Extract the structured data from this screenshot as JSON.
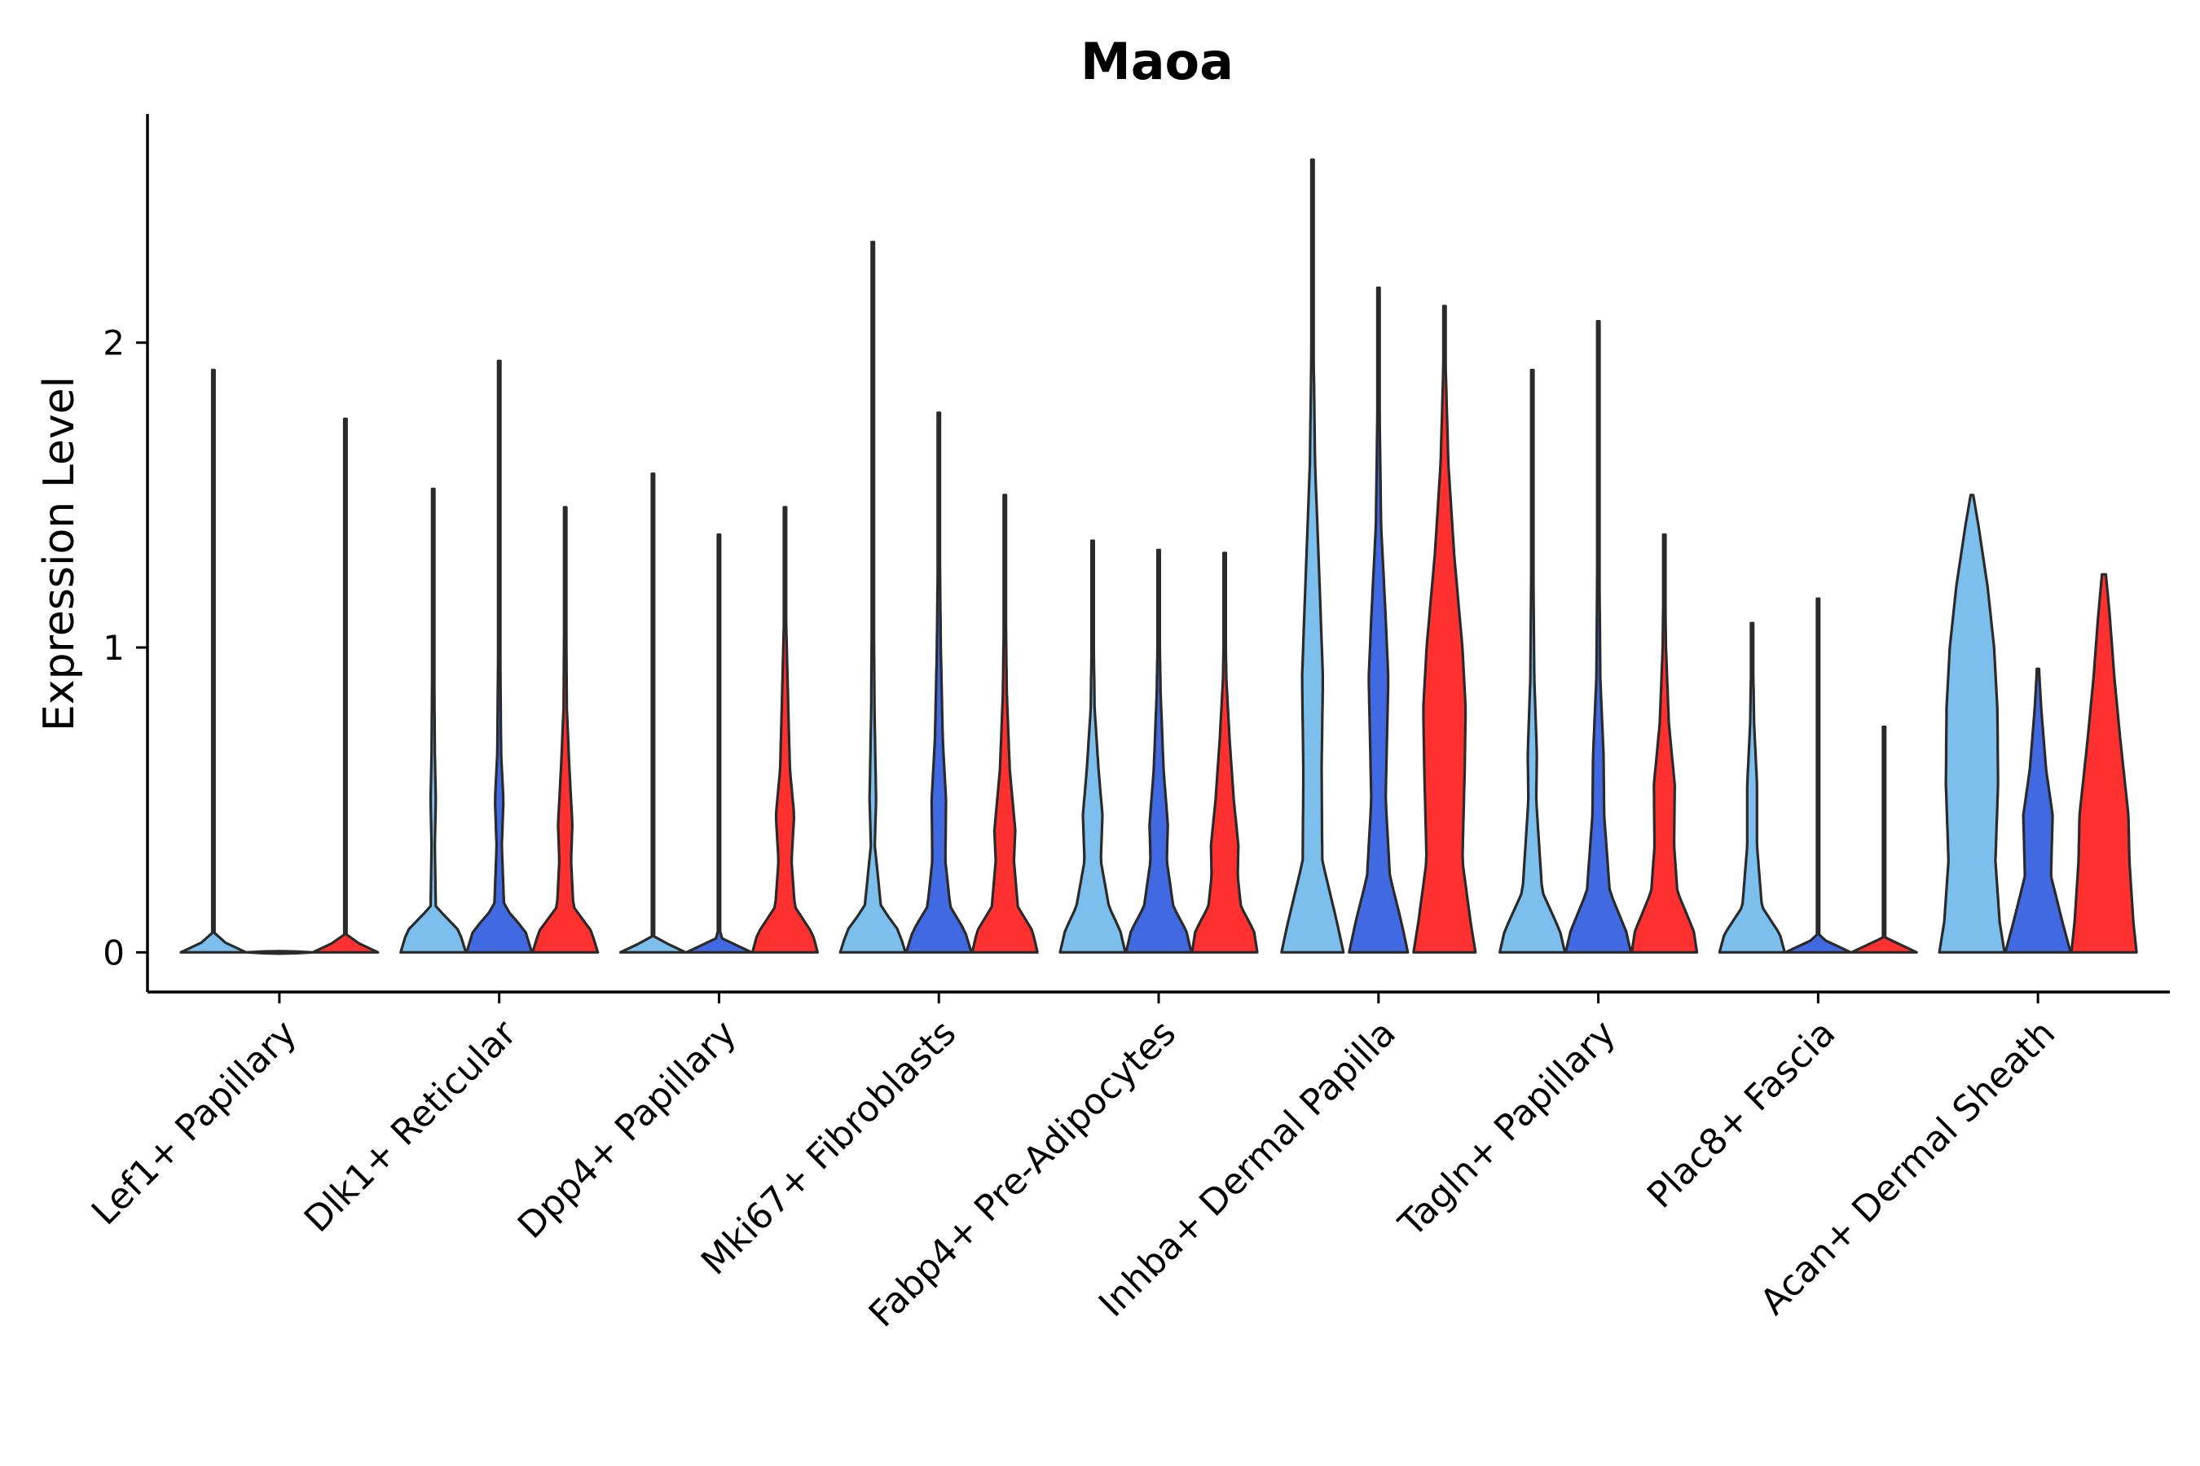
{
  "chart_data": {
    "type": "violin",
    "title": "Maoa",
    "xlabel": "",
    "ylabel": "Expression Level",
    "ylim": [
      -0.13,
      2.75
    ],
    "yticks": [
      0,
      1,
      2
    ],
    "categories": [
      "Lef1+ Papillary",
      "Dlk1+ Reticular",
      "Dpp4+ Papillary",
      "Mki67+ Fibroblasts",
      "Fabp4+ Pre-Adipocytes",
      "Inhba+ Dermal Papilla",
      "Tagln+ Papillary",
      "Plac8+ Fascia",
      "Acan+ Dermal Sheath"
    ],
    "groups": [
      {
        "name": "group-1",
        "color": "#7cbfec"
      },
      {
        "name": "group-2",
        "color": "#4169e1"
      },
      {
        "name": "group-3",
        "color": "#ff3030"
      }
    ],
    "violins": [
      [
        {
          "max": 1.91,
          "shape": [
            [
              0,
              1.0
            ],
            [
              0.05,
              0.01
            ],
            [
              1.91,
              0.004
            ]
          ]
        },
        {
          "max": 0.0,
          "shape": [
            [
              0,
              1.0
            ]
          ]
        },
        {
          "max": 1.75,
          "shape": [
            [
              0,
              1.0
            ],
            [
              0.05,
              0.01
            ],
            [
              1.75,
              0.004
            ]
          ]
        }
      ],
      [
        {
          "max": 1.52,
          "shape": [
            [
              0,
              1.0
            ],
            [
              0.07,
              0.8
            ],
            [
              0.15,
              0.08
            ],
            [
              0.35,
              0.05
            ],
            [
              0.5,
              0.08
            ],
            [
              0.65,
              0.05
            ],
            [
              0.95,
              0.03
            ],
            [
              1.52,
              0.01
            ]
          ]
        },
        {
          "max": 1.94,
          "shape": [
            [
              0,
              1.0
            ],
            [
              0.07,
              0.8
            ],
            [
              0.15,
              0.15
            ],
            [
              0.35,
              0.08
            ],
            [
              0.5,
              0.13
            ],
            [
              0.65,
              0.06
            ],
            [
              1.0,
              0.03
            ],
            [
              1.94,
              0.008
            ]
          ]
        },
        {
          "max": 1.46,
          "shape": [
            [
              0,
              1.0
            ],
            [
              0.07,
              0.8
            ],
            [
              0.15,
              0.25
            ],
            [
              0.3,
              0.18
            ],
            [
              0.42,
              0.22
            ],
            [
              0.6,
              0.13
            ],
            [
              0.8,
              0.05
            ],
            [
              1.1,
              0.03
            ],
            [
              1.46,
              0.01
            ]
          ]
        }
      ],
      [
        {
          "max": 1.57,
          "shape": [
            [
              0,
              1.0
            ],
            [
              0.05,
              0.01
            ],
            [
              1.57,
              0.004
            ]
          ]
        },
        {
          "max": 1.37,
          "shape": [
            [
              0,
              1.0
            ],
            [
              0.05,
              0.01
            ],
            [
              1.37,
              0.004
            ]
          ]
        },
        {
          "max": 1.46,
          "shape": [
            [
              0,
              1.0
            ],
            [
              0.06,
              0.85
            ],
            [
              0.15,
              0.3
            ],
            [
              0.3,
              0.2
            ],
            [
              0.45,
              0.28
            ],
            [
              0.6,
              0.15
            ],
            [
              0.8,
              0.1
            ],
            [
              1.1,
              0.03
            ],
            [
              1.46,
              0.01
            ]
          ]
        }
      ],
      [
        {
          "max": 2.33,
          "shape": [
            [
              0,
              1.0
            ],
            [
              0.07,
              0.8
            ],
            [
              0.15,
              0.25
            ],
            [
              0.35,
              0.06
            ],
            [
              0.5,
              0.1
            ],
            [
              0.8,
              0.05
            ],
            [
              1.3,
              0.02
            ],
            [
              2.33,
              0.006
            ]
          ]
        },
        {
          "max": 1.77,
          "shape": [
            [
              0,
              1.0
            ],
            [
              0.07,
              0.8
            ],
            [
              0.15,
              0.35
            ],
            [
              0.3,
              0.2
            ],
            [
              0.5,
              0.22
            ],
            [
              0.7,
              0.12
            ],
            [
              1.0,
              0.06
            ],
            [
              1.4,
              0.02
            ],
            [
              1.77,
              0.008
            ]
          ]
        },
        {
          "max": 1.5,
          "shape": [
            [
              0,
              1.0
            ],
            [
              0.07,
              0.85
            ],
            [
              0.15,
              0.4
            ],
            [
              0.3,
              0.28
            ],
            [
              0.4,
              0.32
            ],
            [
              0.6,
              0.15
            ],
            [
              0.85,
              0.06
            ],
            [
              1.1,
              0.03
            ],
            [
              1.5,
              0.01
            ]
          ]
        }
      ],
      [
        {
          "max": 1.35,
          "shape": [
            [
              0,
              1.0
            ],
            [
              0.07,
              0.85
            ],
            [
              0.15,
              0.5
            ],
            [
              0.3,
              0.25
            ],
            [
              0.45,
              0.3
            ],
            [
              0.6,
              0.18
            ],
            [
              0.8,
              0.06
            ],
            [
              1.1,
              0.02
            ],
            [
              1.35,
              0.008
            ]
          ]
        },
        {
          "max": 1.32,
          "shape": [
            [
              0,
              1.0
            ],
            [
              0.07,
              0.85
            ],
            [
              0.15,
              0.45
            ],
            [
              0.3,
              0.25
            ],
            [
              0.42,
              0.28
            ],
            [
              0.6,
              0.15
            ],
            [
              0.85,
              0.06
            ],
            [
              1.1,
              0.02
            ],
            [
              1.32,
              0.008
            ]
          ]
        },
        {
          "max": 1.31,
          "shape": [
            [
              0,
              1.0
            ],
            [
              0.07,
              0.9
            ],
            [
              0.15,
              0.5
            ],
            [
              0.25,
              0.4
            ],
            [
              0.35,
              0.42
            ],
            [
              0.5,
              0.28
            ],
            [
              0.7,
              0.15
            ],
            [
              0.9,
              0.05
            ],
            [
              1.1,
              0.02
            ],
            [
              1.31,
              0.008
            ]
          ]
        }
      ],
      [
        {
          "max": 2.6,
          "shape": [
            [
              0,
              0.95
            ],
            [
              0.1,
              0.75
            ],
            [
              0.3,
              0.3
            ],
            [
              0.6,
              0.28
            ],
            [
              0.9,
              0.32
            ],
            [
              1.2,
              0.22
            ],
            [
              1.6,
              0.08
            ],
            [
              2.0,
              0.03
            ],
            [
              2.6,
              0.005
            ]
          ]
        },
        {
          "max": 2.18,
          "shape": [
            [
              0,
              0.9
            ],
            [
              0.1,
              0.7
            ],
            [
              0.25,
              0.35
            ],
            [
              0.5,
              0.22
            ],
            [
              0.9,
              0.3
            ],
            [
              1.1,
              0.22
            ],
            [
              1.4,
              0.08
            ],
            [
              1.8,
              0.03
            ],
            [
              2.18,
              0.006
            ]
          ]
        },
        {
          "max": 2.12,
          "shape": [
            [
              0,
              0.95
            ],
            [
              0.1,
              0.8
            ],
            [
              0.3,
              0.55
            ],
            [
              0.6,
              0.62
            ],
            [
              0.8,
              0.65
            ],
            [
              1.0,
              0.55
            ],
            [
              1.3,
              0.3
            ],
            [
              1.6,
              0.12
            ],
            [
              1.9,
              0.04
            ],
            [
              2.12,
              0.006
            ]
          ]
        }
      ],
      [
        {
          "max": 1.91,
          "shape": [
            [
              0,
              1.0
            ],
            [
              0.07,
              0.85
            ],
            [
              0.2,
              0.3
            ],
            [
              0.5,
              0.12
            ],
            [
              0.65,
              0.14
            ],
            [
              0.9,
              0.06
            ],
            [
              1.3,
              0.03
            ],
            [
              1.91,
              0.006
            ]
          ]
        },
        {
          "max": 2.07,
          "shape": [
            [
              0,
              1.0
            ],
            [
              0.07,
              0.85
            ],
            [
              0.2,
              0.35
            ],
            [
              0.45,
              0.18
            ],
            [
              0.65,
              0.16
            ],
            [
              0.9,
              0.06
            ],
            [
              1.3,
              0.03
            ],
            [
              2.07,
              0.006
            ]
          ]
        },
        {
          "max": 1.37,
          "shape": [
            [
              0,
              1.0
            ],
            [
              0.07,
              0.9
            ],
            [
              0.2,
              0.4
            ],
            [
              0.35,
              0.3
            ],
            [
              0.55,
              0.32
            ],
            [
              0.75,
              0.14
            ],
            [
              1.0,
              0.05
            ],
            [
              1.37,
              0.008
            ]
          ]
        }
      ],
      [
        {
          "max": 1.08,
          "shape": [
            [
              0,
              1.0
            ],
            [
              0.06,
              0.85
            ],
            [
              0.15,
              0.3
            ],
            [
              0.35,
              0.15
            ],
            [
              0.55,
              0.15
            ],
            [
              0.75,
              0.06
            ],
            [
              1.08,
              0.01
            ]
          ]
        },
        {
          "max": 1.16,
          "shape": [
            [
              0,
              1.0
            ],
            [
              0.05,
              0.01
            ],
            [
              1.16,
              0.004
            ]
          ]
        },
        {
          "max": 0.74,
          "shape": [
            [
              0,
              1.0
            ],
            [
              0.05,
              0.01
            ],
            [
              0.74,
              0.004
            ]
          ]
        }
      ],
      [
        {
          "max": 1.5,
          "shape": [
            [
              0,
              1.0
            ],
            [
              0.1,
              0.85
            ],
            [
              0.3,
              0.72
            ],
            [
              0.55,
              0.8
            ],
            [
              0.8,
              0.78
            ],
            [
              1.0,
              0.68
            ],
            [
              1.2,
              0.48
            ],
            [
              1.4,
              0.2
            ],
            [
              1.5,
              0.04
            ]
          ]
        },
        {
          "max": 0.93,
          "shape": [
            [
              0,
              1.0
            ],
            [
              0.1,
              0.75
            ],
            [
              0.25,
              0.4
            ],
            [
              0.45,
              0.45
            ],
            [
              0.6,
              0.25
            ],
            [
              0.8,
              0.1
            ],
            [
              0.93,
              0.03
            ]
          ]
        },
        {
          "max": 1.24,
          "shape": [
            [
              0,
              1.0
            ],
            [
              0.1,
              0.9
            ],
            [
              0.3,
              0.78
            ],
            [
              0.45,
              0.75
            ],
            [
              0.7,
              0.5
            ],
            [
              0.9,
              0.32
            ],
            [
              1.1,
              0.18
            ],
            [
              1.24,
              0.06
            ]
          ]
        }
      ]
    ]
  }
}
